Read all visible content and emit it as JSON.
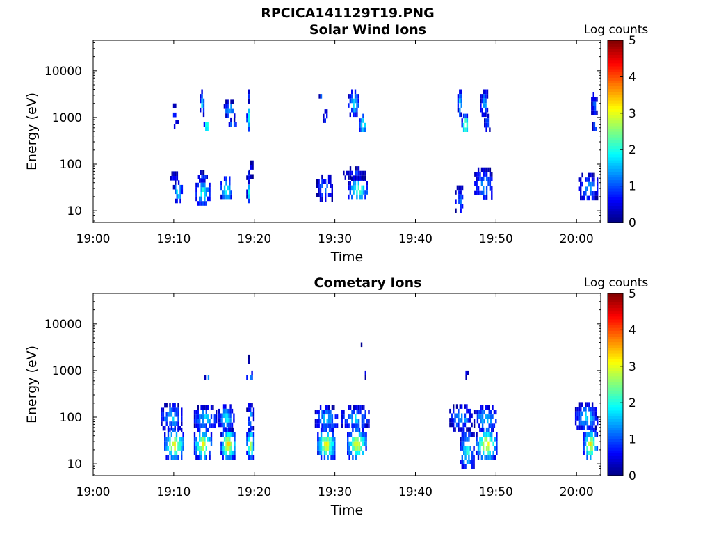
{
  "figure": {
    "title": "RPCICA141129T19.PNG"
  },
  "chart_data": [
    {
      "type": "heatmap",
      "title": "Solar Wind Ions",
      "xlabel": "Time",
      "ylabel": "Energy (eV)",
      "x_ticks": [
        "19:00",
        "19:10",
        "19:20",
        "19:30",
        "19:40",
        "19:50",
        "20:00"
      ],
      "x_range": [
        "19:00",
        "20:03"
      ],
      "y_ticks": [
        "10",
        "100",
        "1000",
        "10000"
      ],
      "y_scale": "log",
      "y_range": [
        5.6,
        45000
      ],
      "colorbar": {
        "label": "Log counts",
        "range": [
          0,
          5
        ],
        "ticks": [
          "0",
          "1",
          "2",
          "3",
          "4",
          "5"
        ],
        "colormap": "jet"
      },
      "blobs": [
        {
          "t": [
            19.0,
            19.3
          ],
          "e": [
            550,
            2400
          ],
          "peak": 2.7
        },
        {
          "t": [
            19.0,
            19.4
          ],
          "e": [
            2400,
            4000
          ],
          "peak": 1.0
        },
        {
          "t": [
            19.0,
            19.35
          ],
          "e": [
            18,
            45
          ],
          "peak": 2.3
        },
        {
          "t": [
            19.0,
            19.35
          ],
          "e": [
            45,
            90
          ],
          "peak": 1.0
        },
        {
          "t": [
            19.3,
            19.9
          ],
          "e": [
            120,
            60
          ],
          "peak": 0.6
        },
        {
          "t": [
            19.15,
            19.25
          ],
          "e": [
            3500,
            3700
          ],
          "peak": 0.6
        },
        {
          "t": [
            9.7,
            10.4
          ],
          "e": [
            1200,
            2000
          ],
          "peak": 1.5
        },
        {
          "t": [
            10.0,
            10.5
          ],
          "e": [
            650,
            900
          ],
          "peak": 1.3
        },
        {
          "t": [
            9.9,
            11.0
          ],
          "e": [
            18,
            45
          ],
          "peak": 2.2
        },
        {
          "t": [
            9.5,
            10.5
          ],
          "e": [
            45,
            70
          ],
          "peak": 0.8
        },
        {
          "t": [
            13.2,
            13.7
          ],
          "e": [
            1200,
            4000
          ],
          "peak": 1.8
        },
        {
          "t": [
            13.7,
            14.3
          ],
          "e": [
            550,
            1000
          ],
          "peak": 2.9
        },
        {
          "t": [
            12.7,
            14.4
          ],
          "e": [
            15,
            50
          ],
          "peak": 2.3
        },
        {
          "t": [
            13.0,
            14.2
          ],
          "e": [
            50,
            75
          ],
          "peak": 1.0
        },
        {
          "t": [
            16.2,
            17.5
          ],
          "e": [
            1100,
            2400
          ],
          "peak": 1.8
        },
        {
          "t": [
            16.8,
            17.7
          ],
          "e": [
            650,
            1000
          ],
          "peak": 1.5
        },
        {
          "t": [
            15.8,
            17.2
          ],
          "e": [
            18,
            55
          ],
          "peak": 2.4
        },
        {
          "t": [
            28.0,
            28.4
          ],
          "e": [
            2400,
            4000
          ],
          "peak": 1.0
        },
        {
          "t": [
            28.5,
            29.0
          ],
          "e": [
            800,
            1500
          ],
          "peak": 0.9
        },
        {
          "t": [
            27.7,
            29.7
          ],
          "e": [
            18,
            60
          ],
          "peak": 1.4
        },
        {
          "t": [
            31.6,
            33.0
          ],
          "e": [
            1200,
            4000
          ],
          "peak": 1.9
        },
        {
          "t": [
            33.0,
            33.8
          ],
          "e": [
            500,
            1200
          ],
          "peak": 2.6
        },
        {
          "t": [
            31.6,
            34.0
          ],
          "e": [
            18,
            55
          ],
          "peak": 2.5
        },
        {
          "t": [
            31.0,
            33.8
          ],
          "e": [
            55,
            90
          ],
          "peak": 0.9
        },
        {
          "t": [
            45.2,
            45.7
          ],
          "e": [
            1200,
            4000
          ],
          "peak": 2.2
        },
        {
          "t": [
            45.7,
            46.5
          ],
          "e": [
            500,
            1200
          ],
          "peak": 3.1
        },
        {
          "t": [
            44.9,
            45.9
          ],
          "e": [
            8,
            35
          ],
          "peak": 1.4
        },
        {
          "t": [
            48.0,
            49.0
          ],
          "e": [
            1200,
            4000
          ],
          "peak": 1.6
        },
        {
          "t": [
            48.5,
            49.3
          ],
          "e": [
            600,
            1200
          ],
          "peak": 1.5
        },
        {
          "t": [
            47.3,
            49.5
          ],
          "e": [
            18,
            85
          ],
          "peak": 1.5
        },
        {
          "t": [
            61.8,
            62.5
          ],
          "e": [
            1200,
            3500
          ],
          "peak": 1.2
        },
        {
          "t": [
            61.9,
            62.5
          ],
          "e": [
            550,
            1000
          ],
          "peak": 1.4
        },
        {
          "t": [
            60.2,
            62.5
          ],
          "e": [
            18,
            65
          ],
          "peak": 1.5
        }
      ]
    },
    {
      "type": "heatmap",
      "title": "Cometary Ions",
      "xlabel": "Time",
      "ylabel": "Energy (eV)",
      "x_ticks": [
        "19:00",
        "19:10",
        "19:20",
        "19:30",
        "19:40",
        "19:50",
        "20:00"
      ],
      "x_range": [
        "19:00",
        "20:03"
      ],
      "y_ticks": [
        "10",
        "100",
        "1000",
        "10000"
      ],
      "y_scale": "log",
      "y_range": [
        5.6,
        45000
      ],
      "colorbar": {
        "label": "Log counts",
        "range": [
          0,
          5
        ],
        "ticks": [
          "0",
          "1",
          "2",
          "3",
          "4",
          "5"
        ],
        "colormap": "jet"
      },
      "blobs": [
        {
          "t": [
            19.0,
            19.8
          ],
          "e": [
            700,
            1000
          ],
          "peak": 1.8
        },
        {
          "t": [
            19.0,
            19.3
          ],
          "e": [
            1700,
            2200
          ],
          "peak": 0.6
        },
        {
          "t": [
            19.0,
            19.9
          ],
          "e": [
            14,
            60
          ],
          "peak": 3.2
        },
        {
          "t": [
            19.0,
            19.9
          ],
          "e": [
            60,
            200
          ],
          "peak": 1.6
        },
        {
          "t": [
            8.8,
            11.2
          ],
          "e": [
            14,
            60
          ],
          "peak": 3.4
        },
        {
          "t": [
            8.4,
            11.0
          ],
          "e": [
            60,
            200
          ],
          "peak": 1.8
        },
        {
          "t": [
            13.8,
            14.4
          ],
          "e": [
            650,
            1000
          ],
          "peak": 1.6
        },
        {
          "t": [
            12.5,
            14.6
          ],
          "e": [
            14,
            60
          ],
          "peak": 3.3
        },
        {
          "t": [
            12.5,
            15.2
          ],
          "e": [
            60,
            180
          ],
          "peak": 1.8
        },
        {
          "t": [
            15.8,
            17.6
          ],
          "e": [
            14,
            60
          ],
          "peak": 3.5
        },
        {
          "t": [
            15.5,
            17.4
          ],
          "e": [
            60,
            190
          ],
          "peak": 2.0
        },
        {
          "t": [
            27.8,
            30.0
          ],
          "e": [
            14,
            60
          ],
          "peak": 3.3
        },
        {
          "t": [
            27.5,
            30.3
          ],
          "e": [
            60,
            180
          ],
          "peak": 1.8
        },
        {
          "t": [
            31.5,
            33.8
          ],
          "e": [
            14,
            60
          ],
          "peak": 3.4
        },
        {
          "t": [
            30.8,
            34.2
          ],
          "e": [
            60,
            180
          ],
          "peak": 1.8
        },
        {
          "t": [
            33.0,
            33.5
          ],
          "e": [
            3600,
            4000
          ],
          "peak": 0.6
        },
        {
          "t": [
            33.5,
            33.9
          ],
          "e": [
            800,
            1000
          ],
          "peak": 1.4
        },
        {
          "t": [
            45.5,
            47.2
          ],
          "e": [
            8,
            60
          ],
          "peak": 2.2
        },
        {
          "t": [
            44.2,
            47.0
          ],
          "e": [
            60,
            190
          ],
          "peak": 1.6
        },
        {
          "t": [
            46.0,
            46.6
          ],
          "e": [
            800,
            1000
          ],
          "peak": 1.6
        },
        {
          "t": [
            47.5,
            50.0
          ],
          "e": [
            14,
            60
          ],
          "peak": 3.4
        },
        {
          "t": [
            47.2,
            50.0
          ],
          "e": [
            60,
            180
          ],
          "peak": 1.8
        },
        {
          "t": [
            60.8,
            62.5
          ],
          "e": [
            14,
            60
          ],
          "peak": 3.3
        },
        {
          "t": [
            59.8,
            62.5
          ],
          "e": [
            60,
            210
          ],
          "peak": 1.8
        }
      ]
    }
  ]
}
